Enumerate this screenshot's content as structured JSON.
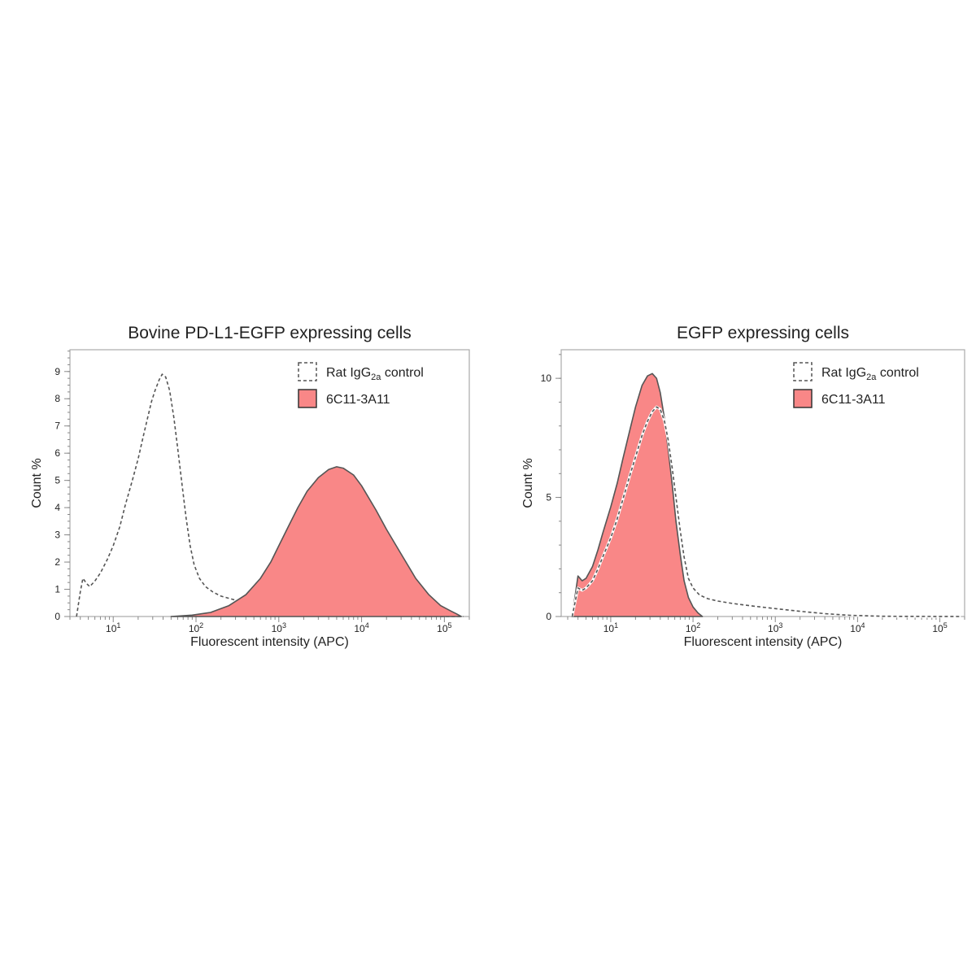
{
  "colors": {
    "fill": "#f98787",
    "outline": "#555555",
    "control": "#555555",
    "frame": "#aaaaaa"
  },
  "chart_data": [
    {
      "type": "area",
      "title": "Bovine PD-L1-EGFP expressing cells",
      "xlabel": "Fluorescent intensity (APC)",
      "ylabel": "Count %",
      "x_scale": "log",
      "xlim": [
        3,
        200000
      ],
      "ylim": [
        0,
        9.8
      ],
      "x_ticks": [
        {
          "value": 10,
          "base": "10",
          "exp": "1"
        },
        {
          "value": 100,
          "base": "10",
          "exp": "2"
        },
        {
          "value": 1000,
          "base": "10",
          "exp": "3"
        },
        {
          "value": 10000,
          "base": "10",
          "exp": "4"
        },
        {
          "value": 100000,
          "base": "10",
          "exp": "5"
        }
      ],
      "y_ticks": [
        {
          "value": 0,
          "label": "0"
        },
        {
          "value": 1,
          "label": "1"
        },
        {
          "value": 2,
          "label": "2"
        },
        {
          "value": 3,
          "label": "3"
        },
        {
          "value": 4,
          "label": "4"
        },
        {
          "value": 5,
          "label": "5"
        },
        {
          "value": 6,
          "label": "6"
        },
        {
          "value": 7,
          "label": "7"
        },
        {
          "value": 8,
          "label": "8"
        },
        {
          "value": 9,
          "label": "9"
        }
      ],
      "legend": {
        "position": "top-right",
        "control": {
          "main": "Rat IgG",
          "sub": "2a",
          "suffix": " control"
        },
        "antibody": {
          "text": "6C11-3A11"
        }
      },
      "series": [
        {
          "style": "dashed",
          "points": [
            [
              3.6,
              0
            ],
            [
              4.0,
              0.9
            ],
            [
              4.3,
              1.4
            ],
            [
              4.8,
              1.2
            ],
            [
              5.2,
              1.1
            ],
            [
              6,
              1.3
            ],
            [
              7,
              1.6
            ],
            [
              8.5,
              2.1
            ],
            [
              10,
              2.6
            ],
            [
              12,
              3.3
            ],
            [
              14,
              4.1
            ],
            [
              17,
              5.0
            ],
            [
              20,
              5.8
            ],
            [
              23,
              6.6
            ],
            [
              26,
              7.3
            ],
            [
              29,
              7.9
            ],
            [
              32,
              8.3
            ],
            [
              36,
              8.7
            ],
            [
              39,
              8.9
            ],
            [
              43,
              8.8
            ],
            [
              48,
              8.3
            ],
            [
              54,
              7.3
            ],
            [
              60,
              6.2
            ],
            [
              68,
              4.8
            ],
            [
              76,
              3.6
            ],
            [
              85,
              2.6
            ],
            [
              95,
              1.9
            ],
            [
              110,
              1.4
            ],
            [
              130,
              1.1
            ],
            [
              160,
              0.9
            ],
            [
              200,
              0.75
            ],
            [
              300,
              0.6
            ],
            [
              500,
              0.42
            ],
            [
              800,
              0.3
            ],
            [
              1200,
              0.2
            ],
            [
              2000,
              0.12
            ],
            [
              3500,
              0.07
            ],
            [
              8000,
              0.03
            ],
            [
              30000,
              0.01
            ],
            [
              170000,
              0
            ]
          ]
        },
        {
          "style": "filled",
          "points": [
            [
              50,
              0
            ],
            [
              90,
              0.05
            ],
            [
              150,
              0.15
            ],
            [
              250,
              0.4
            ],
            [
              400,
              0.8
            ],
            [
              600,
              1.4
            ],
            [
              800,
              2.0
            ],
            [
              1000,
              2.6
            ],
            [
              1300,
              3.3
            ],
            [
              1700,
              4.0
            ],
            [
              2200,
              4.6
            ],
            [
              3000,
              5.1
            ],
            [
              4000,
              5.4
            ],
            [
              5000,
              5.5
            ],
            [
              6000,
              5.45
            ],
            [
              8000,
              5.2
            ],
            [
              10000,
              4.8
            ],
            [
              15000,
              3.9
            ],
            [
              20000,
              3.2
            ],
            [
              30000,
              2.3
            ],
            [
              45000,
              1.4
            ],
            [
              65000,
              0.8
            ],
            [
              90000,
              0.4
            ],
            [
              120000,
              0.2
            ],
            [
              140000,
              0.1
            ],
            [
              160000,
              0
            ]
          ]
        }
      ]
    },
    {
      "type": "area",
      "title": "EGFP expressing cells",
      "xlabel": "Fluorescent intensity (APC)",
      "ylabel": "Count %",
      "x_scale": "log",
      "xlim": [
        2.5,
        200000
      ],
      "ylim": [
        0,
        11.2
      ],
      "x_ticks": [
        {
          "value": 10,
          "base": "10",
          "exp": "1"
        },
        {
          "value": 100,
          "base": "10",
          "exp": "2"
        },
        {
          "value": 1000,
          "base": "10",
          "exp": "3"
        },
        {
          "value": 10000,
          "base": "10",
          "exp": "4"
        },
        {
          "value": 100000,
          "base": "10",
          "exp": "5"
        }
      ],
      "y_ticks": [
        {
          "value": 0,
          "label": "0"
        },
        {
          "value": 5,
          "label": "5"
        },
        {
          "value": 10,
          "label": "10"
        }
      ],
      "legend": {
        "position": "top-right",
        "control": {
          "main": "Rat IgG",
          "sub": "2a",
          "suffix": " control"
        },
        "antibody": {
          "text": "6C11-3A11"
        }
      },
      "series": [
        {
          "style": "dashed",
          "points": [
            [
              3.4,
              0
            ],
            [
              4.0,
              1.2
            ],
            [
              4.5,
              1.1
            ],
            [
              5,
              1.2
            ],
            [
              6,
              1.5
            ],
            [
              7,
              2.0
            ],
            [
              8,
              2.5
            ],
            [
              10,
              3.3
            ],
            [
              12,
              4.1
            ],
            [
              14,
              4.9
            ],
            [
              17,
              5.9
            ],
            [
              20,
              6.7
            ],
            [
              24,
              7.6
            ],
            [
              28,
              8.2
            ],
            [
              32,
              8.6
            ],
            [
              36,
              8.8
            ],
            [
              40,
              8.7
            ],
            [
              45,
              8.2
            ],
            [
              50,
              7.4
            ],
            [
              56,
              6.2
            ],
            [
              62,
              5.0
            ],
            [
              70,
              3.6
            ],
            [
              78,
              2.5
            ],
            [
              88,
              1.6
            ],
            [
              100,
              1.2
            ],
            [
              120,
              0.9
            ],
            [
              150,
              0.75
            ],
            [
              200,
              0.65
            ],
            [
              300,
              0.55
            ],
            [
              500,
              0.45
            ],
            [
              1000,
              0.33
            ],
            [
              2000,
              0.22
            ],
            [
              4000,
              0.12
            ],
            [
              8000,
              0.05
            ],
            [
              20000,
              0.01
            ],
            [
              180000,
              0
            ]
          ]
        },
        {
          "style": "filled",
          "points": [
            [
              3.4,
              0
            ],
            [
              4.0,
              1.7
            ],
            [
              4.5,
              1.5
            ],
            [
              5,
              1.6
            ],
            [
              6,
              2.1
            ],
            [
              7,
              2.8
            ],
            [
              8,
              3.5
            ],
            [
              10,
              4.6
            ],
            [
              12,
              5.6
            ],
            [
              14,
              6.6
            ],
            [
              17,
              7.8
            ],
            [
              20,
              8.8
            ],
            [
              24,
              9.7
            ],
            [
              28,
              10.1
            ],
            [
              32,
              10.2
            ],
            [
              36,
              10.0
            ],
            [
              40,
              9.4
            ],
            [
              45,
              8.3
            ],
            [
              50,
              7.0
            ],
            [
              56,
              5.5
            ],
            [
              62,
              4.0
            ],
            [
              70,
              2.6
            ],
            [
              78,
              1.5
            ],
            [
              88,
              0.8
            ],
            [
              100,
              0.4
            ],
            [
              115,
              0.15
            ],
            [
              130,
              0
            ]
          ]
        }
      ]
    }
  ]
}
